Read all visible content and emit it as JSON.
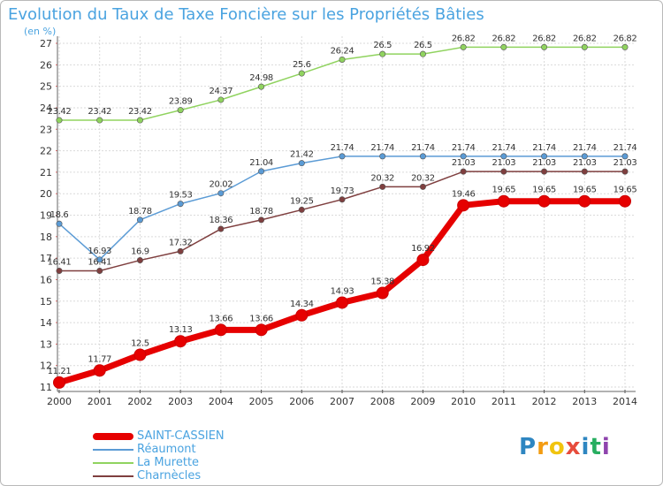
{
  "title": "Evolution du Taux de Taxe Foncière sur les Propriétés Bâties",
  "unit_label": "(en %)",
  "logo": {
    "letters": [
      "P",
      "r",
      "o",
      "x",
      "i",
      "t",
      "i"
    ],
    "colors": [
      "#2e86c1",
      "#f39c12",
      "#f1c40f",
      "#e74c3c",
      "#2e86c1",
      "#27ae60",
      "#8e44ad"
    ]
  },
  "chart_data": {
    "type": "line",
    "title": "Evolution du Taux de Taxe Foncière sur les Propriétés Bâties",
    "ylabel": "(en %)",
    "xlabel": "",
    "x": [
      "2000",
      "2001",
      "2002",
      "2003",
      "2004",
      "2005",
      "2006",
      "2007",
      "2008",
      "2009",
      "2010",
      "2011",
      "2012",
      "2013",
      "2014"
    ],
    "ylim": [
      11,
      27
    ],
    "yticks": [
      "11",
      "12",
      "13",
      "14",
      "15",
      "16",
      "17",
      "18",
      "19",
      "20",
      "21",
      "22",
      "23",
      "24",
      "25",
      "26",
      "27"
    ],
    "grid": true,
    "legend_position": "bottom-left",
    "series": [
      {
        "name": "SAINT-CASSIEN",
        "color": "#e60000",
        "values": [
          11.21,
          11.77,
          12.5,
          13.13,
          13.66,
          13.66,
          14.34,
          14.93,
          15.38,
          16.92,
          19.46,
          19.65,
          19.65,
          19.65,
          19.65
        ],
        "labels": [
          "11.21",
          "11.77",
          "12.5",
          "13.13",
          "13.66",
          "13.66",
          "14.34",
          "14.93",
          "15.38",
          "16.92",
          "19.46",
          "19.65",
          "19.65",
          "19.65",
          "19.65"
        ]
      },
      {
        "name": "Réaumont",
        "color": "#5b9bd5",
        "values": [
          18.6,
          16.93,
          18.78,
          19.53,
          20.02,
          21.04,
          21.42,
          21.74,
          21.74,
          21.74,
          21.74,
          21.74,
          21.74,
          21.74,
          21.74
        ],
        "labels": [
          "18.6",
          "16.93",
          "18.78",
          "19.53",
          "20.02",
          "21.04",
          "21.42",
          "21.74",
          "21.74",
          "21.74",
          "21.74",
          "21.74",
          "21.74",
          "21.74",
          "21.74"
        ]
      },
      {
        "name": "La Murette",
        "color": "#90d35f",
        "values": [
          23.42,
          23.42,
          23.42,
          23.89,
          24.37,
          24.98,
          25.6,
          26.24,
          26.5,
          26.5,
          26.82,
          26.82,
          26.82,
          26.82,
          26.82
        ],
        "labels": [
          "23.42",
          "23.42",
          "23.42",
          "23.89",
          "24.37",
          "24.98",
          "25.6",
          "26.24",
          "26.5",
          "26.5",
          "26.82",
          "26.82",
          "26.82",
          "26.82",
          "26.82"
        ]
      },
      {
        "name": "Charnècles",
        "color": "#7f3f3f",
        "values": [
          16.41,
          16.41,
          16.9,
          17.32,
          18.36,
          18.78,
          19.25,
          19.73,
          20.32,
          20.32,
          21.03,
          21.03,
          21.03,
          21.03,
          21.03
        ],
        "labels": [
          "16.41",
          "16.41",
          "16.9",
          "17.32",
          "18.36",
          "18.78",
          "19.25",
          "19.73",
          "20.32",
          "20.32",
          "21.03",
          "21.03",
          "21.03",
          "21.03",
          "21.03"
        ]
      }
    ]
  }
}
